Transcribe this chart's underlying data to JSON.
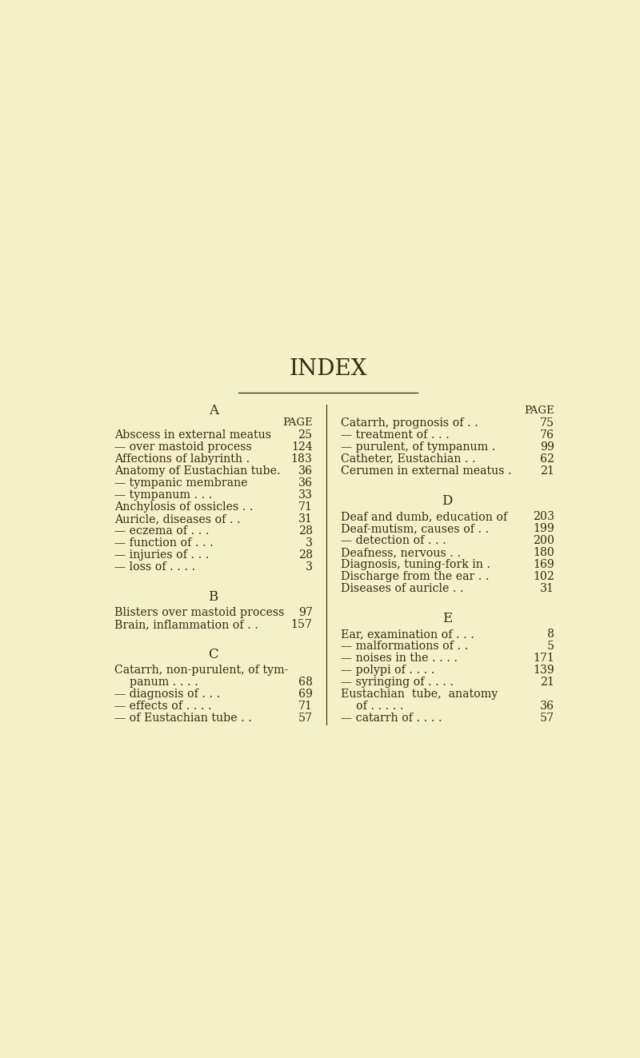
{
  "background_color": "#f5f0c8",
  "title": "INDEX",
  "text_color": "#3a2812",
  "entry_fontsize": 10.2,
  "section_header_fontsize": 12,
  "page_label_fontsize": 9.5,
  "left_entries": [
    {
      "type": "header",
      "text": "A"
    },
    {
      "type": "page_label"
    },
    {
      "type": "entry",
      "text": "Abscess in external meatus",
      "dots": " .",
      "page": "25"
    },
    {
      "type": "entry",
      "text": "— over mastoid process",
      "dots": " .",
      "page": "124"
    },
    {
      "type": "entry",
      "text": "Affections of labyrinth .",
      "dots": " .",
      "page": "183"
    },
    {
      "type": "entry",
      "text": "Anatomy of Eustachian tube.",
      "dots": "",
      "page": "36"
    },
    {
      "type": "entry",
      "text": "— tympanic membrane",
      "dots": " .",
      "page": "36"
    },
    {
      "type": "entry",
      "text": "— tympanum . . .",
      "dots": " .",
      "page": "33"
    },
    {
      "type": "entry",
      "text": "Anchylosis of ossicles . .",
      "dots": "",
      "page": "71"
    },
    {
      "type": "entry",
      "text": "Auricle, diseases of . .",
      "dots": "",
      "page": "31"
    },
    {
      "type": "entry",
      "text": "— eczema of . . .",
      "dots": " .",
      "page": "28"
    },
    {
      "type": "entry",
      "text": "— function of . . .",
      "dots": " .",
      "page": "3"
    },
    {
      "type": "entry",
      "text": "— injuries of . . .",
      "dots": " .",
      "page": "28"
    },
    {
      "type": "entry",
      "text": "— loss of . . . .",
      "dots": "",
      "page": "3"
    },
    {
      "type": "gap",
      "size": 1.5
    },
    {
      "type": "header",
      "text": "B"
    },
    {
      "type": "gap",
      "size": 0.3
    },
    {
      "type": "entry",
      "text": "Blisters over mastoid process",
      "dots": "",
      "page": "97"
    },
    {
      "type": "entry",
      "text": "Brain, inflammation of . .",
      "dots": "",
      "page": "157"
    },
    {
      "type": "gap",
      "size": 1.5
    },
    {
      "type": "header",
      "text": "C"
    },
    {
      "type": "gap",
      "size": 0.3
    },
    {
      "type": "entry",
      "text": "Catarrh, non-purulent, of tym-",
      "dots": "",
      "page": ""
    },
    {
      "type": "entry_indent",
      "text": "panum . . . .",
      "dots": "",
      "page": "68"
    },
    {
      "type": "entry",
      "text": "— diagnosis of . . .",
      "dots": "",
      "page": "69"
    },
    {
      "type": "entry",
      "text": "— effects of . . . .",
      "dots": "",
      "page": "71"
    },
    {
      "type": "entry",
      "text": "— of Eustachian tube . .",
      "dots": "",
      "page": "57"
    }
  ],
  "right_entries": [
    {
      "type": "page_label"
    },
    {
      "type": "entry",
      "text": "Catarrh, prognosis of . .",
      "dots": "",
      "page": "75"
    },
    {
      "type": "entry",
      "text": "— treatment of . . .",
      "dots": " .",
      "page": "76"
    },
    {
      "type": "entry",
      "text": "— purulent, of tympanum .",
      "dots": "",
      "page": "99"
    },
    {
      "type": "entry",
      "text": "Catheter, Eustachian . .",
      "dots": "",
      "page": "62"
    },
    {
      "type": "entry",
      "text": "Cerumen in external meatus .",
      "dots": "",
      "page": "21"
    },
    {
      "type": "gap",
      "size": 1.5
    },
    {
      "type": "header",
      "text": "D"
    },
    {
      "type": "gap",
      "size": 0.3
    },
    {
      "type": "entry",
      "text": "Deaf and dumb, education of",
      "dots": "",
      "page": "203"
    },
    {
      "type": "entry",
      "text": "Deaf-mutism, causes of . .",
      "dots": "",
      "page": "199"
    },
    {
      "type": "entry",
      "text": "— detection of . . .",
      "dots": " .",
      "page": "200"
    },
    {
      "type": "entry",
      "text": "Deafness, nervous . .",
      "dots": "",
      "page": "180"
    },
    {
      "type": "entry",
      "text": "Diagnosis, tuning-fork in .",
      "dots": "",
      "page": "169"
    },
    {
      "type": "entry",
      "text": "Discharge from the ear . .",
      "dots": "",
      "page": "102"
    },
    {
      "type": "entry",
      "text": "Diseases of auricle . .",
      "dots": "",
      "page": "31"
    },
    {
      "type": "gap",
      "size": 1.5
    },
    {
      "type": "header",
      "text": "E"
    },
    {
      "type": "gap",
      "size": 0.3
    },
    {
      "type": "entry",
      "text": "Ear, examination of . . .",
      "dots": "",
      "page": "8"
    },
    {
      "type": "entry",
      "text": "— malformations of . .",
      "dots": " .",
      "page": "5"
    },
    {
      "type": "entry",
      "text": "— noises in the . . . .",
      "dots": "",
      "page": "171"
    },
    {
      "type": "entry",
      "text": "— polypi of . . . .",
      "dots": "",
      "page": "139"
    },
    {
      "type": "entry",
      "text": "— syringing of . . . .",
      "dots": "",
      "page": "21"
    },
    {
      "type": "entry",
      "text": "Eustachian  tube,  anatomy",
      "dots": "",
      "page": ""
    },
    {
      "type": "entry_indent",
      "text": "of . . . . .",
      "dots": "",
      "page": "36"
    },
    {
      "type": "entry",
      "text": "— catarrh of . . . .",
      "dots": "",
      "page": "57"
    }
  ]
}
